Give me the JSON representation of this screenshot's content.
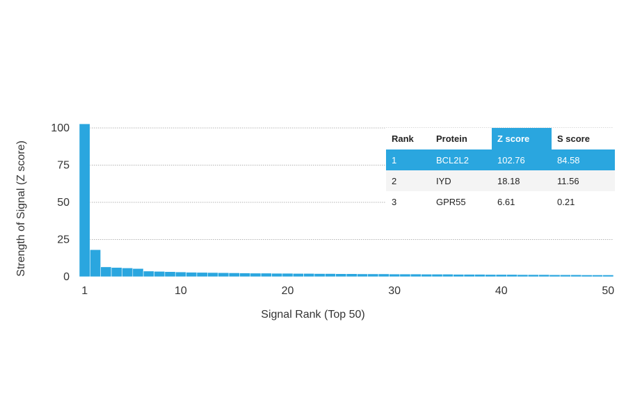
{
  "chart_data": {
    "type": "bar",
    "xlabel": "Signal Rank (Top 50)",
    "ylabel": "Strength of Signal (Z score)",
    "xlim": [
      1,
      50
    ],
    "ylim": [
      0,
      105
    ],
    "x_ticks": [
      1,
      10,
      20,
      30,
      40,
      50
    ],
    "y_ticks": [
      0,
      25,
      50,
      75,
      100
    ],
    "grid": "horizontal dotted",
    "bar_color": "#2aa6df",
    "x": [
      1,
      2,
      3,
      4,
      5,
      6,
      7,
      8,
      9,
      10,
      11,
      12,
      13,
      14,
      15,
      16,
      17,
      18,
      19,
      20,
      21,
      22,
      23,
      24,
      25,
      26,
      27,
      28,
      29,
      30,
      31,
      32,
      33,
      34,
      35,
      36,
      37,
      38,
      39,
      40,
      41,
      42,
      43,
      44,
      45,
      46,
      47,
      48,
      49,
      50
    ],
    "values": [
      102.76,
      18.18,
      6.61,
      6.2,
      5.9,
      5.5,
      3.8,
      3.6,
      3.4,
      3.2,
      3.0,
      2.9,
      2.8,
      2.7,
      2.6,
      2.5,
      2.4,
      2.4,
      2.3,
      2.3,
      2.2,
      2.2,
      2.1,
      2.1,
      2.0,
      2.0,
      1.9,
      1.9,
      1.9,
      1.8,
      1.8,
      1.8,
      1.7,
      1.7,
      1.7,
      1.6,
      1.6,
      1.6,
      1.5,
      1.5,
      1.5,
      1.4,
      1.4,
      1.4,
      1.3,
      1.3,
      1.3,
      1.2,
      1.2,
      1.2
    ]
  },
  "table": {
    "headers": [
      "Rank",
      "Protein",
      "Z score",
      "S score"
    ],
    "rows": [
      [
        "1",
        "BCL2L2",
        "102.76",
        "84.58"
      ],
      [
        "2",
        "IYD",
        "18.18",
        "11.56"
      ],
      [
        "3",
        "GPR55",
        "6.61",
        "0.21"
      ]
    ]
  }
}
